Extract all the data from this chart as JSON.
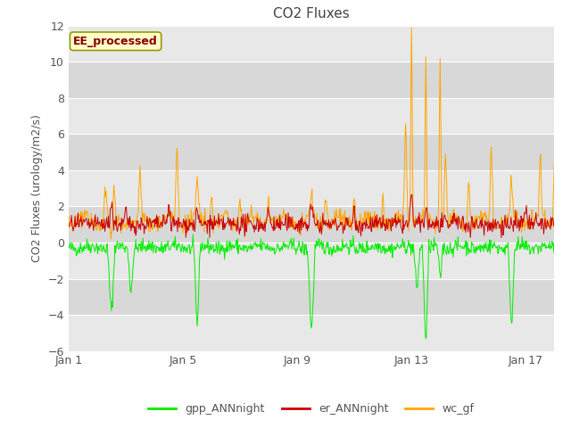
{
  "title": "CO2 Fluxes",
  "ylabel": "CO2 Fluxes (urology/m2/s)",
  "ylim": [
    -6,
    12
  ],
  "yticks": [
    -6,
    -4,
    -2,
    0,
    2,
    4,
    6,
    8,
    10,
    12
  ],
  "xtick_labels": [
    "Jan 1",
    "Jan 5",
    "Jan 9",
    "Jan 13",
    "Jan 17"
  ],
  "xtick_positions": [
    0,
    4,
    8,
    12,
    16
  ],
  "n_days": 18,
  "gpp_color": "#00ee00",
  "er_color": "#cc0000",
  "wc_color": "#ffa500",
  "plot_bg_color": "#e8e8e8",
  "plot_bg_alt_color": "#d8d8d8",
  "grid_color": "#ffffff",
  "annotation_text": "EE_processed",
  "annotation_facecolor": "#ffffcc",
  "annotation_edgecolor": "#999900",
  "annotation_textcolor": "#880000",
  "title_fontsize": 11,
  "label_fontsize": 9,
  "tick_fontsize": 9,
  "legend_fontsize": 9,
  "seed": 42
}
